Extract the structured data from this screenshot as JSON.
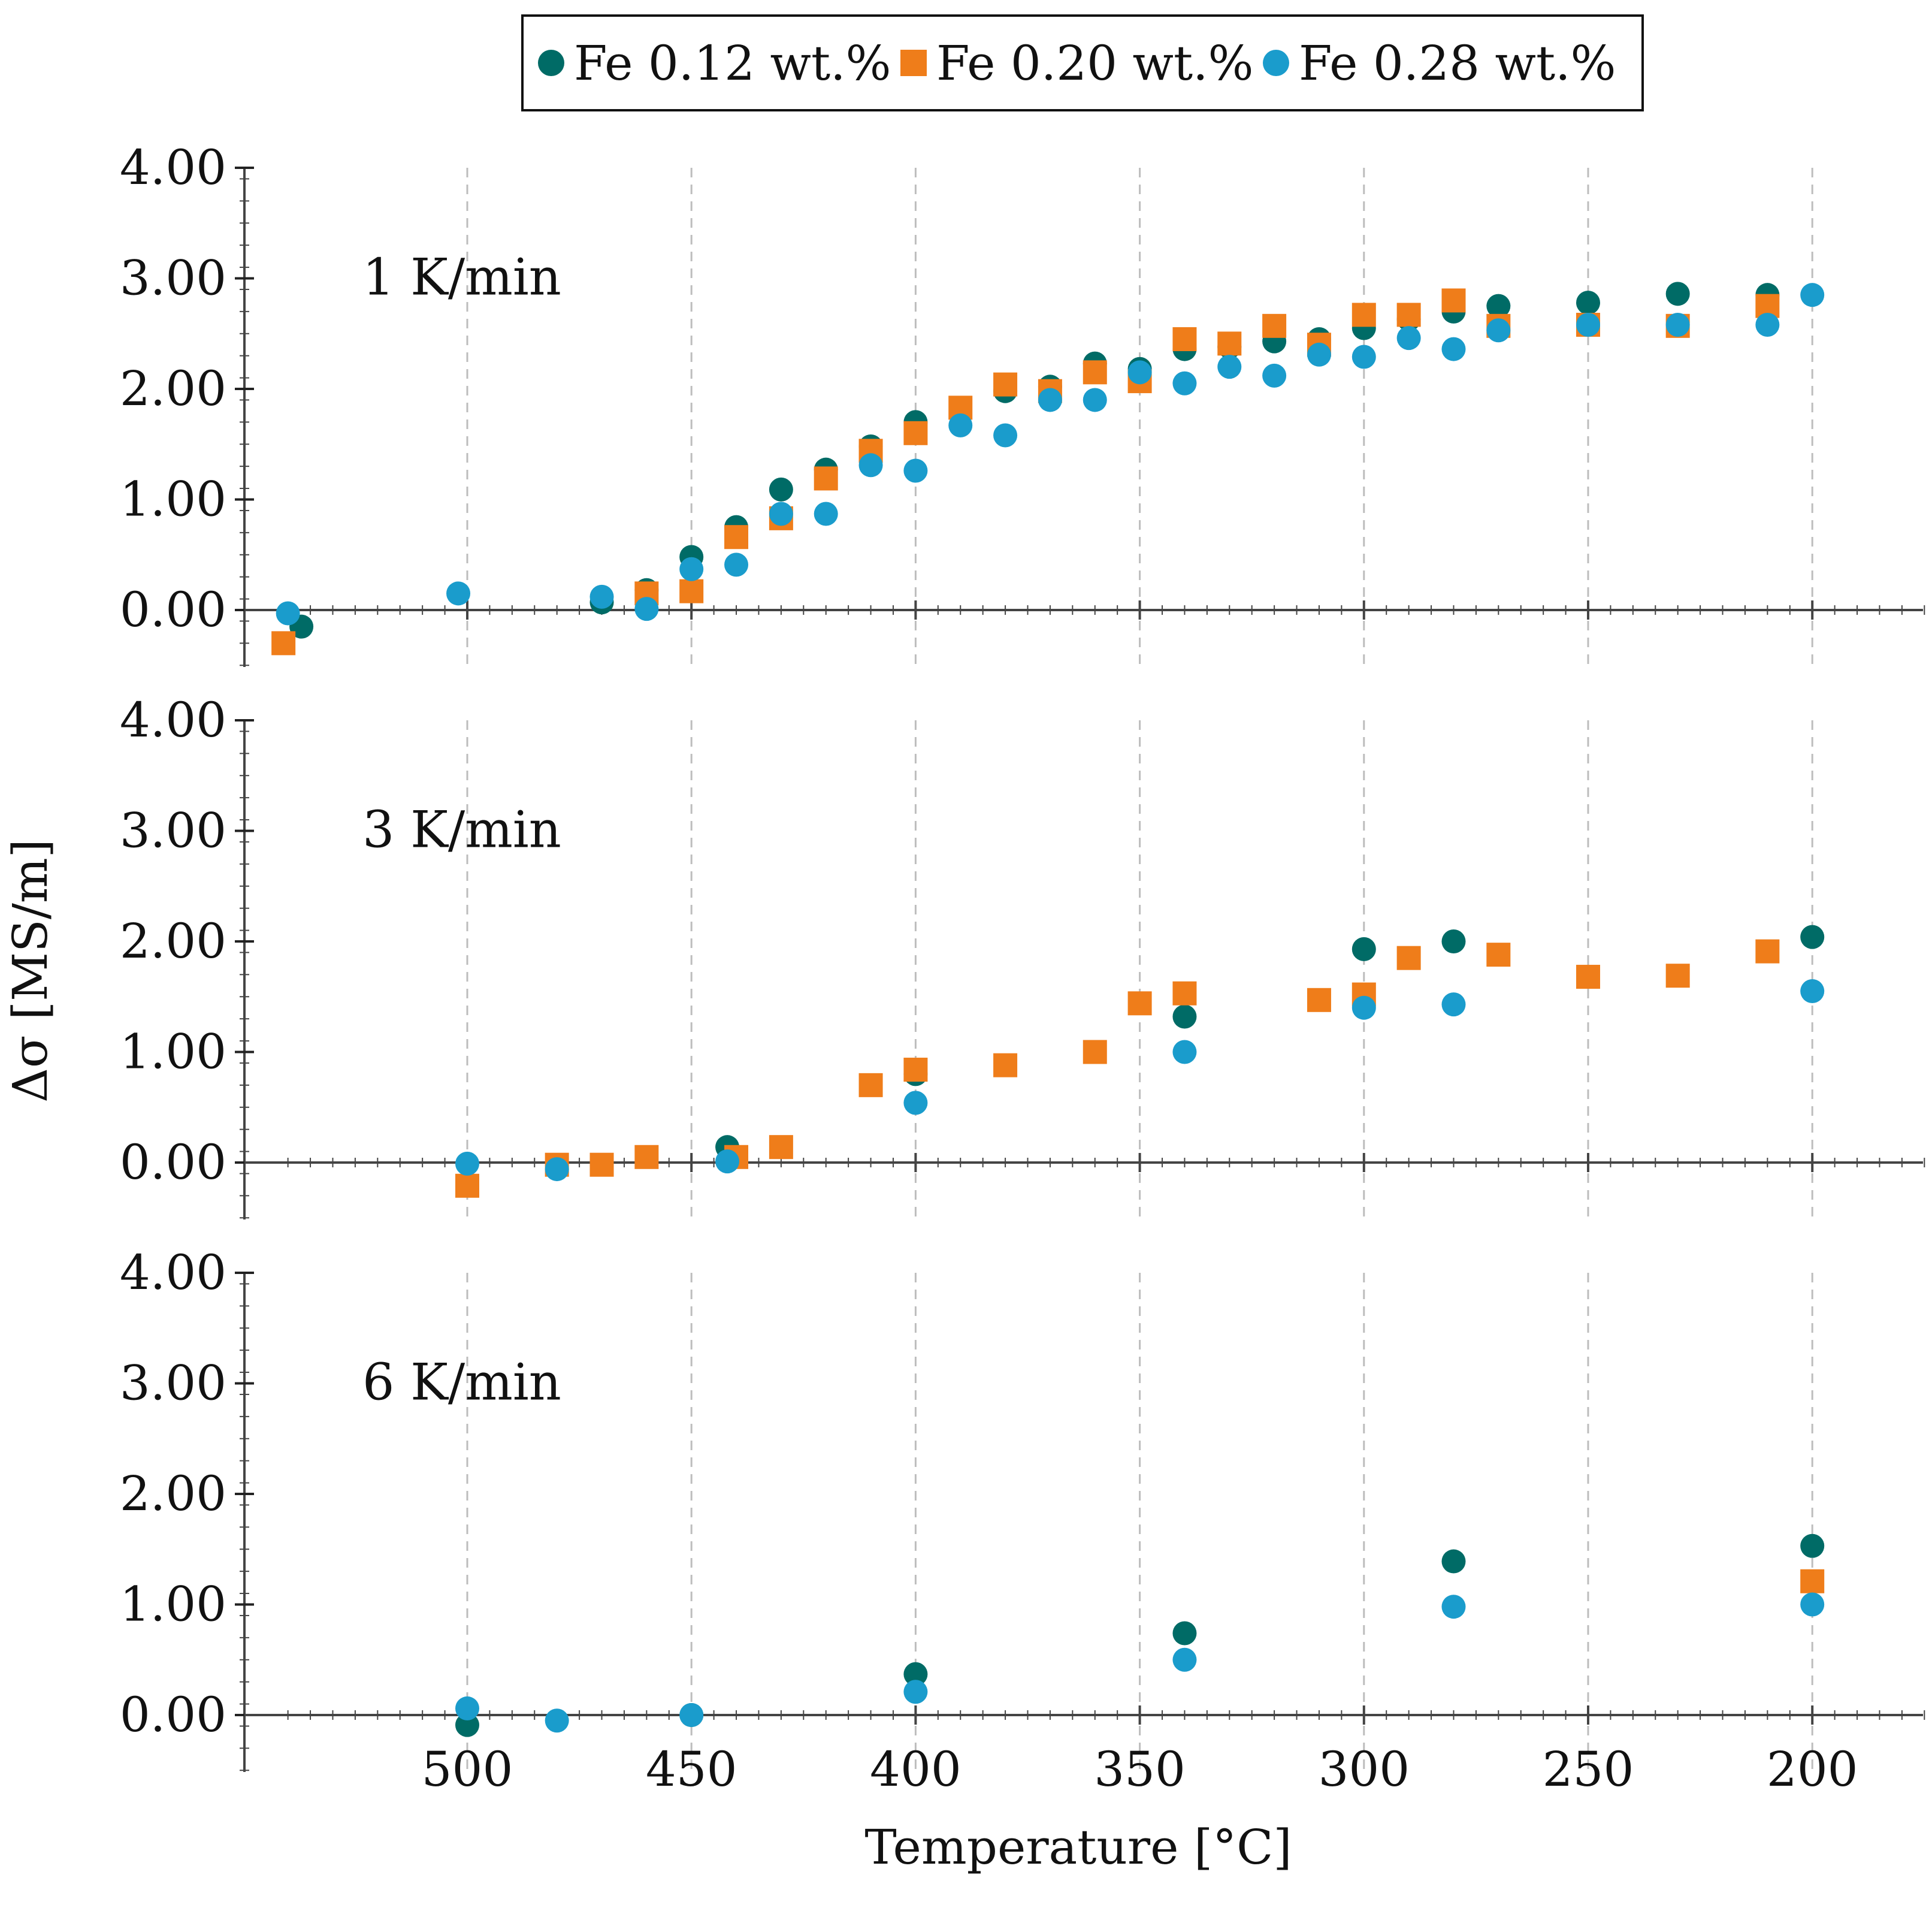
{
  "legend": {
    "placement": "top-center",
    "entries": [
      {
        "label": "Fe 0.12 wt.%",
        "marker": "circle",
        "color": "#006b66"
      },
      {
        "label": "Fe 0.20 wt.%",
        "marker": "square",
        "color": "#ef7d1a"
      },
      {
        "label": "Fe 0.28 wt.%",
        "marker": "circle",
        "color": "#1a9ccc"
      }
    ]
  },
  "chart_data": {
    "type": "scatter",
    "xlabel": "Temperature [°C]",
    "ylabel": "Δσ [MS/m]",
    "xlim": [
      545,
      175
    ],
    "x_reversed": true,
    "ylim": [
      -0.5,
      4.0
    ],
    "xticks": [
      500,
      450,
      400,
      350,
      300,
      250,
      200
    ],
    "yticks": [
      "0.00",
      "1.00",
      "2.00",
      "3.00",
      "4.00"
    ],
    "grid": "vertical dashed at x ticks",
    "panels": [
      {
        "label": "1 K/min",
        "series": [
          {
            "name": "Fe 0.12 wt.%",
            "points": [
              [
                537,
                -0.15
              ],
              [
                470,
                0.07
              ],
              [
                460,
                0.18
              ],
              [
                450,
                0.48
              ],
              [
                440,
                0.75
              ],
              [
                430,
                1.09
              ],
              [
                420,
                1.27
              ],
              [
                410,
                1.48
              ],
              [
                400,
                1.7
              ],
              [
                380,
                1.98
              ],
              [
                370,
                2.02
              ],
              [
                360,
                2.23
              ],
              [
                350,
                2.18
              ],
              [
                340,
                2.36
              ],
              [
                330,
                2.38
              ],
              [
                320,
                2.43
              ],
              [
                310,
                2.45
              ],
              [
                300,
                2.55
              ],
              [
                290,
                2.63
              ],
              [
                280,
                2.7
              ],
              [
                270,
                2.75
              ],
              [
                250,
                2.78
              ],
              [
                230,
                2.86
              ],
              [
                210,
                2.85
              ]
            ]
          },
          {
            "name": "Fe 0.20 wt.%",
            "points": [
              [
                541,
                -0.3
              ],
              [
                460,
                0.15
              ],
              [
                450,
                0.17
              ],
              [
                440,
                0.66
              ],
              [
                430,
                0.83
              ],
              [
                420,
                1.19
              ],
              [
                410,
                1.44
              ],
              [
                400,
                1.6
              ],
              [
                390,
                1.83
              ],
              [
                380,
                2.04
              ],
              [
                370,
                1.98
              ],
              [
                360,
                2.15
              ],
              [
                350,
                2.07
              ],
              [
                340,
                2.45
              ],
              [
                330,
                2.41
              ],
              [
                320,
                2.57
              ],
              [
                310,
                2.4
              ],
              [
                300,
                2.67
              ],
              [
                290,
                2.67
              ],
              [
                280,
                2.8
              ],
              [
                270,
                2.57
              ],
              [
                250,
                2.58
              ],
              [
                230,
                2.57
              ],
              [
                210,
                2.75
              ]
            ]
          },
          {
            "name": "Fe 0.28 wt.%",
            "points": [
              [
                540,
                -0.03
              ],
              [
                502,
                0.15
              ],
              [
                470,
                0.12
              ],
              [
                460,
                0.01
              ],
              [
                450,
                0.37
              ],
              [
                440,
                0.41
              ],
              [
                430,
                0.87
              ],
              [
                420,
                0.87
              ],
              [
                410,
                1.31
              ],
              [
                400,
                1.26
              ],
              [
                390,
                1.67
              ],
              [
                380,
                1.58
              ],
              [
                370,
                1.9
              ],
              [
                360,
                1.9
              ],
              [
                350,
                2.15
              ],
              [
                340,
                2.05
              ],
              [
                330,
                2.2
              ],
              [
                320,
                2.12
              ],
              [
                310,
                2.31
              ],
              [
                300,
                2.29
              ],
              [
                290,
                2.46
              ],
              [
                280,
                2.36
              ],
              [
                270,
                2.53
              ],
              [
                250,
                2.58
              ],
              [
                230,
                2.58
              ],
              [
                210,
                2.58
              ],
              [
                200,
                2.85
              ]
            ]
          }
        ]
      },
      {
        "label": "3 K/min",
        "series": [
          {
            "name": "Fe 0.12 wt.%",
            "points": [
              [
                442,
                0.14
              ],
              [
                400,
                0.8
              ],
              [
                340,
                1.32
              ],
              [
                300,
                1.93
              ],
              [
                280,
                2.0
              ],
              [
                200,
                2.04
              ]
            ]
          },
          {
            "name": "Fe 0.20 wt.%",
            "points": [
              [
                500,
                -0.21
              ],
              [
                480,
                -0.02
              ],
              [
                470,
                -0.02
              ],
              [
                460,
                0.05
              ],
              [
                440,
                0.05
              ],
              [
                430,
                0.14
              ],
              [
                410,
                0.7
              ],
              [
                400,
                0.84
              ],
              [
                380,
                0.88
              ],
              [
                360,
                1.0
              ],
              [
                350,
                1.44
              ],
              [
                340,
                1.53
              ],
              [
                310,
                1.47
              ],
              [
                300,
                1.52
              ],
              [
                290,
                1.85
              ],
              [
                270,
                1.88
              ],
              [
                250,
                1.68
              ],
              [
                230,
                1.69
              ],
              [
                210,
                1.91
              ]
            ]
          },
          {
            "name": "Fe 0.28 wt.%",
            "points": [
              [
                500,
                -0.01
              ],
              [
                480,
                -0.06
              ],
              [
                442,
                0.01
              ],
              [
                400,
                0.54
              ],
              [
                340,
                1.0
              ],
              [
                300,
                1.4
              ],
              [
                280,
                1.43
              ],
              [
                200,
                1.55
              ]
            ]
          }
        ]
      },
      {
        "label": "6 K/min",
        "series": [
          {
            "name": "Fe 0.12 wt.%",
            "points": [
              [
                500,
                -0.09
              ],
              [
                450,
                0.0
              ],
              [
                400,
                0.37
              ],
              [
                340,
                0.74
              ],
              [
                280,
                1.39
              ],
              [
                200,
                1.53
              ]
            ]
          },
          {
            "name": "Fe 0.20 wt.%",
            "points": [
              [
                200,
                1.21
              ]
            ]
          },
          {
            "name": "Fe 0.28 wt.%",
            "points": [
              [
                500,
                0.06
              ],
              [
                480,
                -0.05
              ],
              [
                450,
                0.0
              ],
              [
                400,
                0.21
              ],
              [
                340,
                0.5
              ],
              [
                280,
                0.98
              ],
              [
                200,
                1.0
              ]
            ]
          }
        ]
      }
    ]
  }
}
